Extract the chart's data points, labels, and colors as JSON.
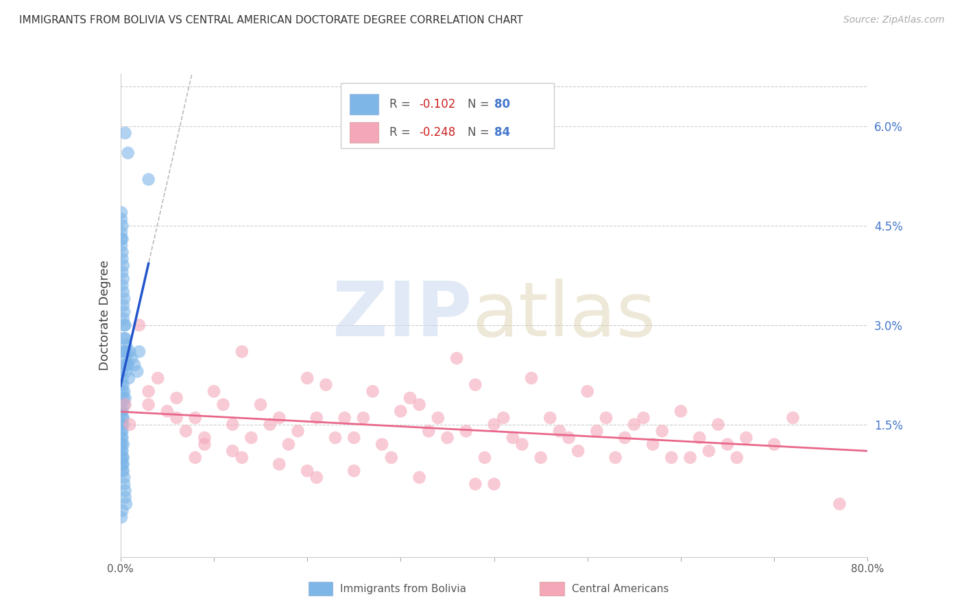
{
  "title": "IMMIGRANTS FROM BOLIVIA VS CENTRAL AMERICAN DOCTORATE DEGREE CORRELATION CHART",
  "source": "Source: ZipAtlas.com",
  "ylabel_left": "Doctorate Degree",
  "xmin": 0.0,
  "xmax": 0.8,
  "ymin": -0.005,
  "ymax": 0.068,
  "bolivia_color": "#7EB6E8",
  "central_color": "#F4A7B9",
  "bolivia_line_color": "#2255CC",
  "central_line_color": "#E8678A",
  "dash_color": "#BBBBBB",
  "bolivia_R": -0.102,
  "bolivia_N": 80,
  "central_R": -0.248,
  "central_N": 84,
  "legend_label_bolivia": "Immigrants from Bolivia",
  "legend_label_central": "Central Americans",
  "bolivia_scatter_x": [
    0.005,
    0.008,
    0.03,
    0.001,
    0.001,
    0.001,
    0.001,
    0.001,
    0.002,
    0.002,
    0.002,
    0.002,
    0.002,
    0.002,
    0.003,
    0.003,
    0.003,
    0.003,
    0.003,
    0.004,
    0.004,
    0.004,
    0.004,
    0.004,
    0.005,
    0.005,
    0.005,
    0.005,
    0.006,
    0.006,
    0.006,
    0.007,
    0.007,
    0.008,
    0.009,
    0.01,
    0.012,
    0.015,
    0.018,
    0.02,
    0.001,
    0.001,
    0.002,
    0.002,
    0.003,
    0.003,
    0.004,
    0.004,
    0.005,
    0.001,
    0.002,
    0.003,
    0.001,
    0.002,
    0.001,
    0.002,
    0.003,
    0.001,
    0.002,
    0.003,
    0.001,
    0.001,
    0.001,
    0.001,
    0.001,
    0.002,
    0.002,
    0.002,
    0.002,
    0.003,
    0.003,
    0.003,
    0.004,
    0.004,
    0.005,
    0.005,
    0.006,
    0.001,
    0.002,
    0.001
  ],
  "bolivia_scatter_y": [
    0.059,
    0.056,
    0.052,
    0.047,
    0.046,
    0.044,
    0.043,
    0.042,
    0.045,
    0.043,
    0.041,
    0.04,
    0.038,
    0.036,
    0.039,
    0.037,
    0.035,
    0.033,
    0.031,
    0.034,
    0.032,
    0.03,
    0.028,
    0.026,
    0.03,
    0.028,
    0.026,
    0.024,
    0.027,
    0.025,
    0.023,
    0.026,
    0.024,
    0.024,
    0.022,
    0.026,
    0.025,
    0.024,
    0.023,
    0.026,
    0.023,
    0.021,
    0.022,
    0.02,
    0.021,
    0.019,
    0.02,
    0.018,
    0.019,
    0.018,
    0.017,
    0.016,
    0.015,
    0.014,
    0.017,
    0.016,
    0.015,
    0.014,
    0.013,
    0.012,
    0.013,
    0.012,
    0.011,
    0.01,
    0.009,
    0.011,
    0.01,
    0.009,
    0.008,
    0.01,
    0.009,
    0.008,
    0.007,
    0.006,
    0.005,
    0.004,
    0.003,
    0.012,
    0.002,
    0.001
  ],
  "central_scatter_x": [
    0.005,
    0.01,
    0.02,
    0.03,
    0.04,
    0.05,
    0.06,
    0.07,
    0.08,
    0.09,
    0.1,
    0.11,
    0.12,
    0.13,
    0.14,
    0.15,
    0.16,
    0.17,
    0.18,
    0.19,
    0.2,
    0.21,
    0.22,
    0.23,
    0.24,
    0.25,
    0.26,
    0.27,
    0.28,
    0.29,
    0.3,
    0.31,
    0.32,
    0.33,
    0.34,
    0.35,
    0.36,
    0.37,
    0.38,
    0.39,
    0.4,
    0.41,
    0.42,
    0.43,
    0.44,
    0.45,
    0.46,
    0.47,
    0.48,
    0.49,
    0.5,
    0.51,
    0.52,
    0.53,
    0.54,
    0.55,
    0.56,
    0.57,
    0.58,
    0.59,
    0.6,
    0.61,
    0.62,
    0.63,
    0.64,
    0.65,
    0.66,
    0.67,
    0.7,
    0.72,
    0.03,
    0.06,
    0.09,
    0.13,
    0.17,
    0.21,
    0.25,
    0.32,
    0.38,
    0.77,
    0.08,
    0.12,
    0.2,
    0.4
  ],
  "central_scatter_y": [
    0.018,
    0.015,
    0.03,
    0.02,
    0.022,
    0.017,
    0.019,
    0.014,
    0.016,
    0.013,
    0.02,
    0.018,
    0.015,
    0.026,
    0.013,
    0.018,
    0.015,
    0.016,
    0.012,
    0.014,
    0.022,
    0.016,
    0.021,
    0.013,
    0.016,
    0.013,
    0.016,
    0.02,
    0.012,
    0.01,
    0.017,
    0.019,
    0.018,
    0.014,
    0.016,
    0.013,
    0.025,
    0.014,
    0.021,
    0.01,
    0.015,
    0.016,
    0.013,
    0.012,
    0.022,
    0.01,
    0.016,
    0.014,
    0.013,
    0.011,
    0.02,
    0.014,
    0.016,
    0.01,
    0.013,
    0.015,
    0.016,
    0.012,
    0.014,
    0.01,
    0.017,
    0.01,
    0.013,
    0.011,
    0.015,
    0.012,
    0.01,
    0.013,
    0.012,
    0.016,
    0.018,
    0.016,
    0.012,
    0.01,
    0.009,
    0.007,
    0.008,
    0.007,
    0.006,
    0.003,
    0.01,
    0.011,
    0.008,
    0.006
  ]
}
